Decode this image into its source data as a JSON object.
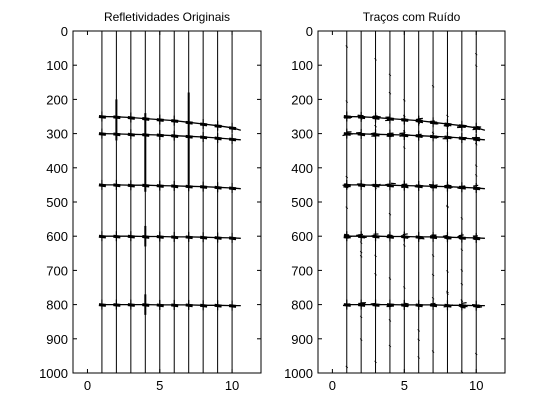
{
  "chart_data": [
    {
      "type": "line",
      "title": "Refletividades Originais",
      "xlim": [
        -1,
        12
      ],
      "ylim": [
        0,
        1000
      ],
      "y_reversed": true,
      "xticks": [
        0,
        5,
        10
      ],
      "yticks": [
        0,
        100,
        200,
        300,
        400,
        500,
        600,
        700,
        800,
        900,
        1000
      ],
      "grid": false,
      "trace_x": [
        1,
        2,
        3,
        4,
        5,
        6,
        7,
        8,
        9,
        10
      ],
      "reflectors": [
        {
          "x": [
            1,
            2,
            3,
            4,
            5,
            6,
            7,
            8,
            9,
            10,
            10.6
          ],
          "y": [
            250,
            251,
            253,
            256,
            259,
            262,
            267,
            272,
            277,
            283,
            290
          ]
        },
        {
          "x": [
            1,
            2,
            3,
            4,
            5,
            6,
            7,
            8,
            9,
            10,
            10.6
          ],
          "y": [
            300,
            301,
            302,
            303,
            304,
            306,
            308,
            310,
            313,
            316,
            318
          ]
        },
        {
          "x": [
            1,
            2,
            3,
            4,
            5,
            6,
            7,
            8,
            9,
            10,
            10.6
          ],
          "y": [
            450,
            450,
            451,
            451,
            452,
            453,
            454,
            455,
            457,
            459,
            461
          ]
        },
        {
          "x": [
            1,
            2,
            3,
            4,
            5,
            6,
            7,
            8,
            9,
            10,
            10.6
          ],
          "y": [
            600,
            600,
            600,
            601,
            601,
            602,
            602,
            603,
            604,
            605,
            606
          ]
        },
        {
          "x": [
            1,
            2,
            3,
            4,
            5,
            6,
            7,
            8,
            9,
            10,
            10.6
          ],
          "y": [
            800,
            800,
            800,
            800,
            801,
            801,
            801,
            802,
            802,
            803,
            803
          ]
        }
      ],
      "spikes": [
        {
          "x": 2,
          "y0": 200,
          "y1": 320
        },
        {
          "x": 4,
          "y0": 240,
          "y1": 470
        },
        {
          "x": 4,
          "y0": 570,
          "y1": 630
        },
        {
          "x": 4,
          "y0": 770,
          "y1": 830
        },
        {
          "x": 7,
          "y0": 180,
          "y1": 450
        }
      ]
    },
    {
      "type": "line",
      "title": "Traços com Ruído",
      "xlim": [
        -1,
        12
      ],
      "ylim": [
        0,
        1000
      ],
      "y_reversed": true,
      "xticks": [
        0,
        5,
        10
      ],
      "yticks": [
        0,
        100,
        200,
        300,
        400,
        500,
        600,
        700,
        800,
        900,
        1000
      ],
      "grid": false,
      "trace_x": [
        1,
        2,
        3,
        4,
        5,
        6,
        7,
        8,
        9,
        10
      ],
      "reflectors": [
        {
          "x": [
            1,
            2,
            3,
            4,
            5,
            6,
            7,
            8,
            9,
            10,
            10.6
          ],
          "y": [
            250,
            251,
            253,
            256,
            259,
            262,
            267,
            272,
            277,
            283,
            290
          ]
        },
        {
          "x": [
            1,
            2,
            3,
            4,
            5,
            6,
            7,
            8,
            9,
            10,
            10.6
          ],
          "y": [
            300,
            301,
            302,
            303,
            304,
            306,
            308,
            310,
            313,
            316,
            318
          ]
        },
        {
          "x": [
            1,
            2,
            3,
            4,
            5,
            6,
            7,
            8,
            9,
            10,
            10.6
          ],
          "y": [
            450,
            450,
            451,
            451,
            452,
            453,
            454,
            455,
            457,
            459,
            461
          ]
        },
        {
          "x": [
            1,
            2,
            3,
            4,
            5,
            6,
            7,
            8,
            9,
            10,
            10.6
          ],
          "y": [
            600,
            600,
            600,
            601,
            601,
            602,
            602,
            603,
            604,
            605,
            606
          ]
        },
        {
          "x": [
            1,
            2,
            3,
            4,
            5,
            6,
            7,
            8,
            9,
            10,
            10.6
          ],
          "y": [
            800,
            800,
            800,
            800,
            801,
            801,
            801,
            802,
            802,
            803,
            803
          ]
        }
      ],
      "spikes": []
    }
  ]
}
